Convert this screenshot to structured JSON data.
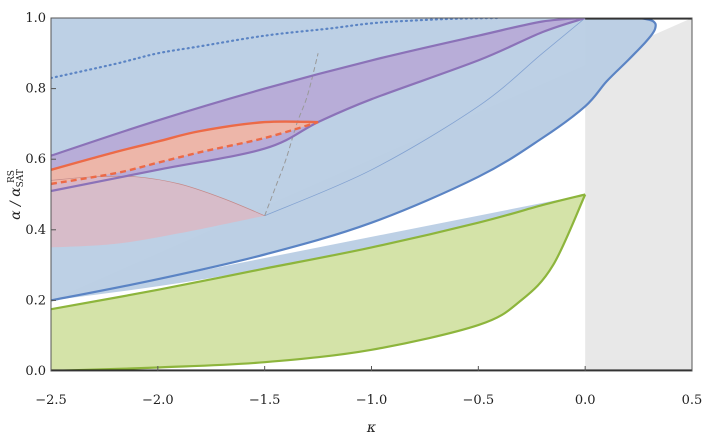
{
  "chart_data": {
    "type": "area",
    "title": "",
    "xlabel": "κ",
    "ylabel_main": "α / α",
    "ylabel_sup": "RS",
    "ylabel_sub": "SAT",
    "xlim": [
      -2.5,
      0.5
    ],
    "ylim": [
      0.0,
      1.0
    ],
    "xticks": [
      "−2.5",
      "−2.0",
      "−1.5",
      "−1.0",
      "−0.5",
      "0.0",
      "0.5"
    ],
    "xtick_values": [
      -2.5,
      -2.0,
      -1.5,
      -1.0,
      -0.5,
      0.0,
      0.5
    ],
    "yticks": [
      "0.0",
      "0.2",
      "0.4",
      "0.6",
      "0.8",
      "1.0"
    ],
    "ytick_values": [
      0.0,
      0.2,
      0.4,
      0.6,
      0.8,
      1.0
    ],
    "colors": {
      "gray_region": "#e8e8e8",
      "blue_fill": "#b9cde4",
      "blue_line": "#5b84c4",
      "purple_fill": "#b7a9d6",
      "purple_line": "#8b72b8",
      "green_fill": "#d4e3a8",
      "green_line": "#8db53c",
      "red_fill": "#f3b7a4",
      "red_line": "#ec6a47",
      "pink_fill": "#dcb9c4",
      "black_line": "#111111"
    },
    "series": [
      {
        "role": "blue_region_boundary",
        "x": [
          -2.5,
          -2.0,
          -1.5,
          -1.0,
          -0.5,
          -0.2,
          0.0,
          0.1,
          0.2,
          0.28,
          0.32,
          0.33,
          0.32,
          0.3,
          0.25,
          0.15,
          0.05,
          0.0
        ],
        "y": [
          0.2,
          0.26,
          0.33,
          0.42,
          0.55,
          0.66,
          0.75,
          0.82,
          0.88,
          0.93,
          0.96,
          0.98,
          0.99,
          0.995,
          1.0,
          1.0,
          1.0,
          1.0
        ]
      },
      {
        "role": "blue_left_lower",
        "x": [
          -2.5,
          -2.0,
          -1.5,
          -1.0,
          -0.5,
          -0.2,
          0.0
        ],
        "y": [
          0.2,
          0.24,
          0.29,
          0.35,
          0.42,
          0.47,
          0.5
        ]
      },
      {
        "role": "green_upper",
        "x": [
          -2.5,
          -2.0,
          -1.5,
          -1.0,
          -0.5,
          -0.2,
          0.0
        ],
        "y": [
          0.175,
          0.23,
          0.29,
          0.35,
          0.42,
          0.47,
          0.5
        ]
      },
      {
        "role": "green_lower",
        "x": [
          -2.5,
          -2.0,
          -1.5,
          -1.0,
          -0.5,
          -0.3,
          -0.15,
          0.0
        ],
        "y": [
          0.0,
          0.01,
          0.025,
          0.06,
          0.13,
          0.2,
          0.3,
          0.5
        ]
      },
      {
        "role": "purple_upper",
        "x": [
          -2.5,
          -2.0,
          -1.5,
          -1.0,
          -0.5,
          -0.2,
          0.0
        ],
        "y": [
          0.61,
          0.71,
          0.8,
          0.88,
          0.95,
          0.99,
          1.0
        ]
      },
      {
        "role": "purple_lower",
        "x": [
          -2.5,
          -2.0,
          -1.5,
          -1.25,
          -1.0,
          -0.5,
          -0.2,
          0.0
        ],
        "y": [
          0.51,
          0.57,
          0.63,
          0.705,
          0.77,
          0.88,
          0.96,
          1.0
        ]
      },
      {
        "role": "red_upper",
        "x": [
          -2.5,
          -2.2,
          -2.0,
          -1.8,
          -1.5,
          -1.25
        ],
        "y": [
          0.57,
          0.62,
          0.65,
          0.68,
          0.705,
          0.705
        ]
      },
      {
        "role": "red_dashed_lower",
        "x": [
          -2.5,
          -2.2,
          -2.0,
          -1.8,
          -1.5,
          -1.25
        ],
        "y": [
          0.53,
          0.56,
          0.59,
          0.62,
          0.66,
          0.705
        ]
      },
      {
        "role": "pink_lobe_upper",
        "x": [
          -2.5,
          -2.3,
          -2.1,
          -1.9,
          -1.7,
          -1.5
        ],
        "y": [
          0.54,
          0.55,
          0.55,
          0.53,
          0.49,
          0.44
        ]
      },
      {
        "role": "pink_lobe_lower",
        "x": [
          -2.5,
          -2.2,
          -1.9,
          -1.5
        ],
        "y": [
          0.35,
          0.36,
          0.39,
          0.44
        ]
      },
      {
        "role": "blue_dotted_top",
        "x": [
          -2.5,
          -2.2,
          -2.0,
          -1.8,
          -1.5,
          -1.2,
          -1.0,
          -0.8,
          -0.6,
          -0.4
        ],
        "y": [
          0.83,
          0.87,
          0.9,
          0.92,
          0.95,
          0.97,
          0.985,
          0.993,
          0.998,
          1.0
        ]
      },
      {
        "role": "gray_dashed_vertical",
        "x": [
          -1.5,
          -1.45,
          -1.4,
          -1.35,
          -1.3,
          -1.25
        ],
        "y": [
          0.44,
          0.52,
          0.6,
          0.7,
          0.78,
          0.9
        ]
      },
      {
        "role": "blue_faint_diag",
        "x": [
          -1.5,
          -1.0,
          -0.5,
          -0.2,
          0.0
        ],
        "y": [
          0.44,
          0.57,
          0.75,
          0.9,
          1.0
        ]
      }
    ]
  }
}
